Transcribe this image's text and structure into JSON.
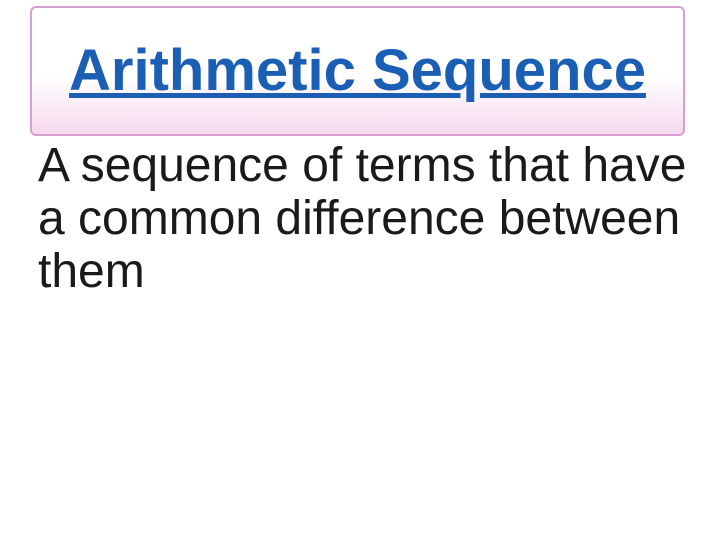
{
  "title": {
    "text": "Arithmetic Sequence",
    "color": "#1a5fb4",
    "fontsize": 58,
    "font_weight": "bold",
    "underline": true,
    "box_border_color": "#d8a0d0",
    "box_gradient_start": "#ffffff",
    "box_gradient_end": "#f5d8ec"
  },
  "body": {
    "text": "A sequence of terms that have a common difference between them",
    "color": "#1a1a1a",
    "fontsize": 48
  },
  "background_color": "#ffffff"
}
